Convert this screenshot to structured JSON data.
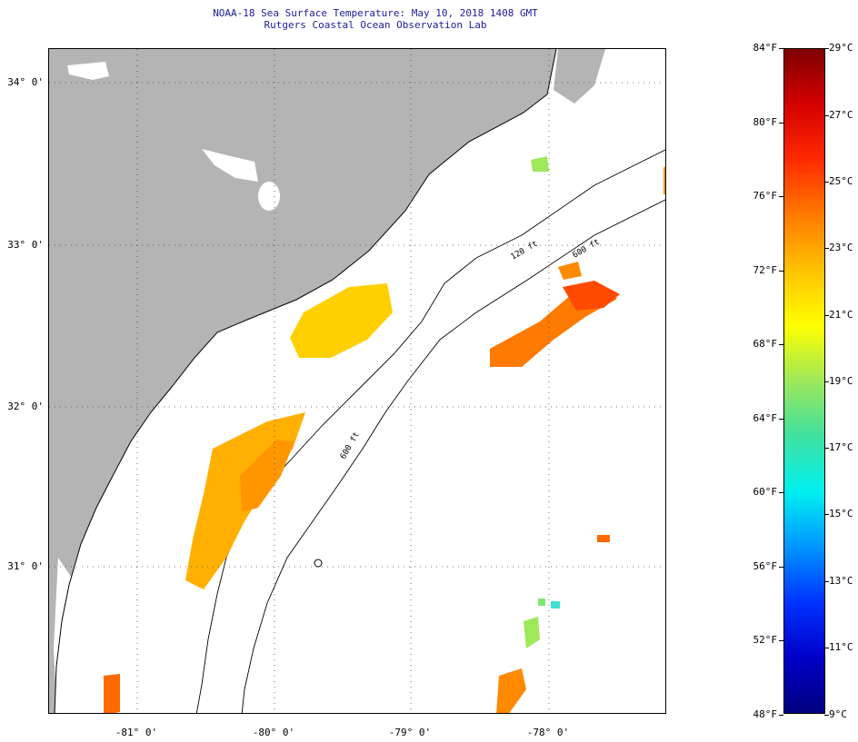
{
  "title": "NOAA-18 Sea Surface Temperature:  May 10, 2018 1408 GMT",
  "subtitle": "Rutgers Coastal Ocean Observation Lab",
  "map": {
    "lat_range": [
      30.1,
      34.2
    ],
    "lon_range": [
      -81.5,
      -77.13
    ],
    "lat_labels": [
      "34° 0'",
      "33° 0'",
      "32° 0'",
      "31° 0'"
    ],
    "lon_labels": [
      "-81° 0'",
      "-80° 0'",
      "-79° 0'",
      "-78° 0'"
    ],
    "grid": "dotted",
    "land_color": "#b4b4b4",
    "contour_labels": [
      "120 ft",
      "600 ft",
      "600 ft"
    ]
  },
  "colorbar": {
    "fahrenheit_labels": [
      "84°F",
      "80°F",
      "76°F",
      "72°F",
      "68°F",
      "64°F",
      "60°F",
      "56°F",
      "52°F",
      "48°F"
    ],
    "celsius_labels": [
      "29°C",
      "27°C",
      "25°C",
      "23°C",
      "21°C",
      "19°C",
      "17°C",
      "15°C",
      "13°C",
      "11°C",
      "9°C"
    ],
    "colors_top_to_bottom": [
      "#7f0000",
      "#d40000",
      "#ff2a00",
      "#ff7a00",
      "#ffc200",
      "#ffff00",
      "#9ee85a",
      "#3fe0a0",
      "#00f0f0",
      "#0096ff",
      "#0032ff",
      "#0000c8",
      "#00007f"
    ]
  }
}
